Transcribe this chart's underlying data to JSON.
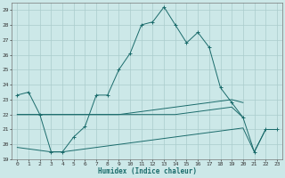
{
  "title": "",
  "xlabel": "Humidex (Indice chaleur)",
  "xlim": [
    -0.5,
    23.5
  ],
  "ylim": [
    19,
    29.5
  ],
  "yticks": [
    19,
    20,
    21,
    22,
    23,
    24,
    25,
    26,
    27,
    28,
    29
  ],
  "xticks": [
    0,
    1,
    2,
    3,
    4,
    5,
    6,
    7,
    8,
    9,
    10,
    11,
    12,
    13,
    14,
    15,
    16,
    17,
    18,
    19,
    20,
    21,
    22,
    23
  ],
  "background_color": "#cce8e8",
  "grid_color": "#aacccc",
  "line_color": "#1a6b6b",
  "series": [
    {
      "x": [
        0,
        1,
        2,
        3,
        4,
        5,
        6,
        7,
        8,
        9,
        10,
        11,
        12,
        13,
        14,
        15,
        16,
        17,
        18,
        19,
        20,
        21,
        22,
        23
      ],
      "y": [
        23.3,
        23.5,
        22.0,
        19.5,
        19.5,
        20.5,
        21.2,
        23.3,
        23.3,
        25.0,
        26.1,
        28.0,
        28.2,
        29.2,
        28.0,
        26.8,
        27.5,
        26.5,
        23.8,
        22.8,
        21.8,
        19.5,
        21.0,
        21.0
      ],
      "marker": "+"
    },
    {
      "x": [
        0,
        1,
        2,
        3,
        4,
        5,
        6,
        7,
        8,
        9,
        10,
        11,
        12,
        13,
        14,
        15,
        16,
        17,
        18,
        19,
        20
      ],
      "y": [
        22.0,
        22.0,
        22.0,
        22.0,
        22.0,
        22.0,
        22.0,
        22.0,
        22.0,
        22.0,
        22.1,
        22.2,
        22.3,
        22.4,
        22.5,
        22.6,
        22.7,
        22.8,
        22.9,
        23.0,
        22.8
      ],
      "marker": null
    },
    {
      "x": [
        0,
        1,
        2,
        3,
        4,
        5,
        6,
        7,
        8,
        9,
        10,
        11,
        12,
        13,
        14,
        15,
        16,
        17,
        18,
        19,
        20
      ],
      "y": [
        22.0,
        22.0,
        22.0,
        22.0,
        22.0,
        22.0,
        22.0,
        22.0,
        22.0,
        22.0,
        22.0,
        22.0,
        22.0,
        22.0,
        22.0,
        22.1,
        22.2,
        22.3,
        22.4,
        22.5,
        21.8
      ],
      "marker": null
    },
    {
      "x": [
        0,
        1,
        2,
        3,
        4,
        5,
        6,
        7,
        8,
        9,
        10,
        11,
        12,
        13,
        14,
        15,
        16,
        17,
        18,
        19,
        20,
        21,
        22,
        23
      ],
      "y": [
        19.8,
        19.7,
        19.6,
        19.5,
        19.5,
        19.6,
        19.7,
        19.8,
        19.9,
        20.0,
        20.1,
        20.2,
        20.3,
        20.4,
        20.5,
        20.6,
        20.7,
        20.8,
        20.9,
        21.0,
        21.1,
        19.5,
        21.0,
        21.0
      ],
      "marker": null
    }
  ]
}
